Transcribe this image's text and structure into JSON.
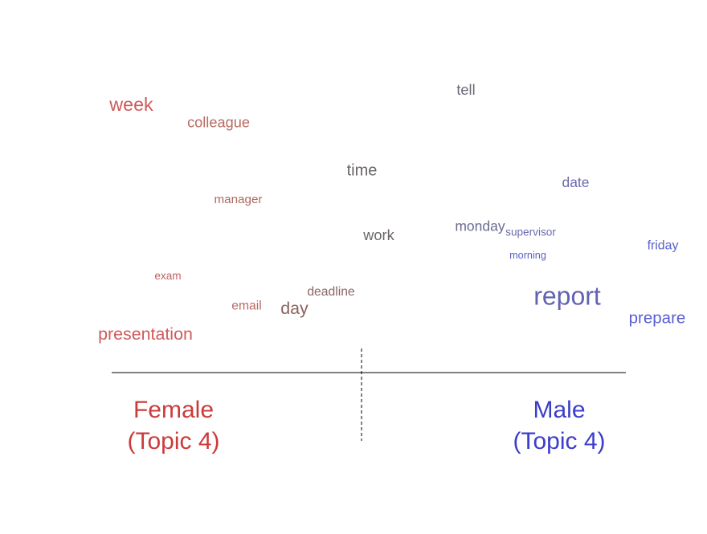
{
  "chart_data": {
    "type": "scatter",
    "words": [
      {
        "text": "week",
        "x": -0.87,
        "y": 1.0,
        "freq": 0.62,
        "color": "#d05a5a"
      },
      {
        "text": "colleague",
        "x": -0.56,
        "y": 0.93,
        "freq": 0.4,
        "color": "#b86a62"
      },
      {
        "text": "tell",
        "x": 0.32,
        "y": 1.07,
        "freq": 0.4,
        "color": "#6a6a78"
      },
      {
        "text": "time",
        "x": -0.05,
        "y": 0.72,
        "freq": 0.48,
        "color": "#6a6468"
      },
      {
        "text": "date",
        "x": 0.71,
        "y": 0.67,
        "freq": 0.37,
        "color": "#6a68b0"
      },
      {
        "text": "manager",
        "x": -0.49,
        "y": 0.6,
        "freq": 0.27,
        "color": "#a86a62"
      },
      {
        "text": "monday",
        "x": 0.37,
        "y": 0.48,
        "freq": 0.37,
        "color": "#6a6a90"
      },
      {
        "text": "supervisor",
        "x": 0.55,
        "y": 0.46,
        "freq": 0.2,
        "color": "#6a6ab0"
      },
      {
        "text": "work",
        "x": 0.01,
        "y": 0.44,
        "freq": 0.4,
        "color": "#6a6466"
      },
      {
        "text": "friday",
        "x": 1.02,
        "y": 0.4,
        "freq": 0.3,
        "color": "#5a62cc"
      },
      {
        "text": "morning",
        "x": 0.54,
        "y": 0.36,
        "freq": 0.16,
        "color": "#5a5fc8"
      },
      {
        "text": "exam",
        "x": -0.74,
        "y": 0.27,
        "freq": 0.2,
        "color": "#c06060"
      },
      {
        "text": "deadline",
        "x": -0.16,
        "y": 0.2,
        "freq": 0.29,
        "color": "#8a6664"
      },
      {
        "text": "report",
        "x": 0.68,
        "y": 0.16,
        "freq": 1.0,
        "color": "#6262b4"
      },
      {
        "text": "email",
        "x": -0.46,
        "y": 0.14,
        "freq": 0.29,
        "color": "#b86a68"
      },
      {
        "text": "day",
        "x": -0.29,
        "y": 0.12,
        "freq": 0.54,
        "color": "#8a625e"
      },
      {
        "text": "prepare",
        "x": 1.0,
        "y": 0.08,
        "freq": 0.5,
        "color": "#5a5fd0"
      },
      {
        "text": "presentation",
        "x": -0.82,
        "y": 0.01,
        "freq": 0.54,
        "color": "#d05a5a"
      }
    ],
    "groups": [
      {
        "name": "Female\n(Topic 4)",
        "side": "left",
        "color": "#cc3b3b"
      },
      {
        "name": "Male\n(Topic 4)",
        "side": "right",
        "color": "#3d3dcc"
      }
    ],
    "xlim": [
      -1.0,
      1.0
    ],
    "ylim": [
      -0.05,
      1.15
    ],
    "title": "",
    "xlabel": "",
    "ylabel": ""
  }
}
